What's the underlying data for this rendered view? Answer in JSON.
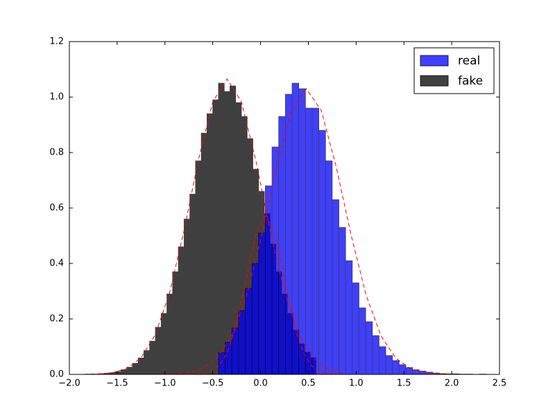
{
  "chart_data": {
    "type": "histogram",
    "series": [
      {
        "name": "real",
        "color": "#0000ff",
        "alpha": 0.75,
        "bins": [
          -0.44,
          -0.37,
          -0.3,
          -0.23,
          -0.16,
          -0.09,
          -0.02,
          0.05,
          0.12,
          0.19,
          0.26,
          0.33,
          0.4,
          0.47,
          0.54,
          0.61,
          0.68,
          0.75,
          0.82,
          0.89,
          0.96,
          1.03,
          1.1,
          1.17,
          1.24,
          1.31,
          1.38,
          1.45,
          1.52,
          1.59,
          1.66,
          1.73,
          1.8,
          1.87,
          1.94,
          2.01,
          2.08,
          2.15,
          2.22,
          2.29,
          2.36
        ],
        "values": [
          0.078,
          0.116,
          0.167,
          0.23,
          0.31,
          0.4,
          0.51,
          0.68,
          0.82,
          0.93,
          1.01,
          1.05,
          1.03,
          0.96,
          0.96,
          0.88,
          0.77,
          0.63,
          0.53,
          0.41,
          0.33,
          0.24,
          0.19,
          0.14,
          0.1,
          0.068,
          0.05,
          0.035,
          0.025,
          0.017,
          0.012,
          0.008,
          0.005,
          0.003,
          0.002,
          0.002,
          0.001,
          0.001,
          0.0,
          0.001
        ]
      },
      {
        "name": "fake",
        "color": "#000000",
        "alpha": 0.75,
        "bins": [
          -1.82,
          -1.76,
          -1.7,
          -1.64,
          -1.58,
          -1.52,
          -1.46,
          -1.4,
          -1.34,
          -1.28,
          -1.22,
          -1.16,
          -1.1,
          -1.04,
          -0.98,
          -0.92,
          -0.86,
          -0.8,
          -0.74,
          -0.68,
          -0.62,
          -0.56,
          -0.5,
          -0.44,
          -0.38,
          -0.32,
          -0.26,
          -0.2,
          -0.14,
          -0.08,
          -0.02,
          0.04,
          0.1,
          0.16,
          0.22,
          0.28,
          0.34,
          0.4,
          0.46,
          0.52,
          0.58
        ],
        "values": [
          0.001,
          0.001,
          0.002,
          0.004,
          0.006,
          0.01,
          0.017,
          0.026,
          0.04,
          0.059,
          0.086,
          0.12,
          0.17,
          0.22,
          0.29,
          0.37,
          0.46,
          0.56,
          0.65,
          0.77,
          0.87,
          0.94,
          0.99,
          1.05,
          1.02,
          1.04,
          0.98,
          0.93,
          0.85,
          0.74,
          0.66,
          0.58,
          0.47,
          0.37,
          0.29,
          0.22,
          0.16,
          0.11,
          0.08,
          0.06
        ]
      }
    ],
    "lines": [
      {
        "color": "#ff0000",
        "style": "dashed",
        "x": [
          -1.85,
          -1.7,
          -1.55,
          -1.4,
          -1.25,
          -1.1,
          -0.95,
          -0.8,
          -0.65,
          -0.5,
          -0.35,
          -0.2,
          -0.05,
          0.1,
          0.25,
          0.4,
          0.55,
          0.7,
          0.85
        ],
        "values": [
          0.0004,
          0.002,
          0.006,
          0.021,
          0.06,
          0.144,
          0.296,
          0.519,
          0.773,
          0.983,
          1.065,
          0.983,
          0.773,
          0.519,
          0.296,
          0.144,
          0.06,
          0.021,
          0.006
        ]
      },
      {
        "color": "#ff0000",
        "style": "dashed",
        "x": [
          -1.08,
          -0.924,
          -0.768,
          -0.612,
          -0.456,
          -0.3,
          -0.144,
          0.012,
          0.168,
          0.324,
          0.48,
          0.636,
          0.792,
          0.948,
          1.104,
          1.26,
          1.416,
          1.572,
          1.728,
          1.884,
          2.04
        ],
        "values": [
          0.0003,
          0.0015,
          0.006,
          0.02,
          0.058,
          0.139,
          0.286,
          0.502,
          0.748,
          0.951,
          1.03,
          0.951,
          0.748,
          0.502,
          0.286,
          0.139,
          0.058,
          0.02,
          0.006,
          0.0015,
          0.0003
        ]
      },
      {
        "color": "#ff0000",
        "style": "dashed",
        "x": [
          -0.75,
          -0.67,
          -0.59,
          -0.51,
          -0.43,
          -0.35,
          -0.27,
          -0.19,
          -0.11,
          -0.03,
          0.05,
          0.13,
          0.21,
          0.29,
          0.37,
          0.45,
          0.53,
          0.61,
          0.69,
          0.77,
          0.85
        ],
        "values": [
          0.0002,
          0.0009,
          0.0034,
          0.011,
          0.032,
          0.077,
          0.158,
          0.278,
          0.414,
          0.526,
          0.57,
          0.526,
          0.414,
          0.278,
          0.158,
          0.077,
          0.032,
          0.011,
          0.0034,
          0.0009,
          0.0002
        ]
      }
    ],
    "xlim": [
      -2.0,
      2.5
    ],
    "xticks": [
      {
        "value": -2.0,
        "label": "−2.0"
      },
      {
        "value": -1.5,
        "label": "−1.5"
      },
      {
        "value": -1.0,
        "label": "−1.0"
      },
      {
        "value": -0.5,
        "label": "−0.5"
      },
      {
        "value": 0.0,
        "label": "0.0"
      },
      {
        "value": 0.5,
        "label": "0.5"
      },
      {
        "value": 1.0,
        "label": "1.0"
      },
      {
        "value": 1.5,
        "label": "1.5"
      },
      {
        "value": 2.0,
        "label": "2.0"
      },
      {
        "value": 2.5,
        "label": "2.5"
      }
    ],
    "ylim": [
      0.0,
      1.2
    ],
    "yticks": [
      {
        "value": 0.0,
        "label": "0.0"
      },
      {
        "value": 0.2,
        "label": "0.2"
      },
      {
        "value": 0.4,
        "label": "0.4"
      },
      {
        "value": 0.6,
        "label": "0.6"
      },
      {
        "value": 0.8,
        "label": "0.8"
      },
      {
        "value": 1.0,
        "label": "1.0"
      },
      {
        "value": 1.2,
        "label": "1.2"
      }
    ],
    "grid": false,
    "legend": "upper right"
  }
}
